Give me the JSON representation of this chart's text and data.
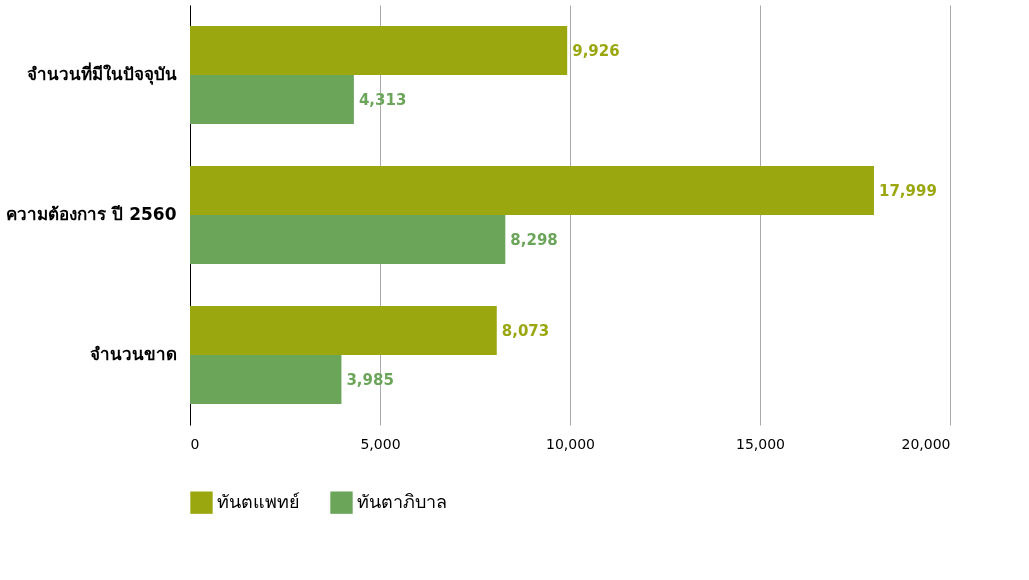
{
  "chart_data": {
    "type": "bar",
    "orientation": "horizontal",
    "categories": [
      "จำนวนที่มีในปัจจุบัน",
      "ความต้องการ ปี 2560",
      "จำนวนขาด"
    ],
    "series": [
      {
        "name": "ทันตแพทย์",
        "color": "#9aa70f",
        "values": [
          9926,
          17999,
          8073
        ],
        "value_labels": [
          "9,926",
          "17,999",
          "8,073"
        ]
      },
      {
        "name": "ทันตาภิบาล",
        "color": "#6ba55a",
        "values": [
          4313,
          8298,
          3985
        ],
        "value_labels": [
          "4,313",
          "8,298",
          "3,985"
        ]
      }
    ],
    "xlim": [
      0,
      20000
    ],
    "xticks": [
      0,
      {
        "value": 5000,
        "label": "5,000"
      },
      {
        "value": 10000,
        "label": "10,000"
      },
      {
        "value": 15000,
        "label": "15,000"
      },
      {
        "value": 20000,
        "label": "20,000"
      }
    ],
    "grid": "x",
    "legend": "bottom"
  }
}
